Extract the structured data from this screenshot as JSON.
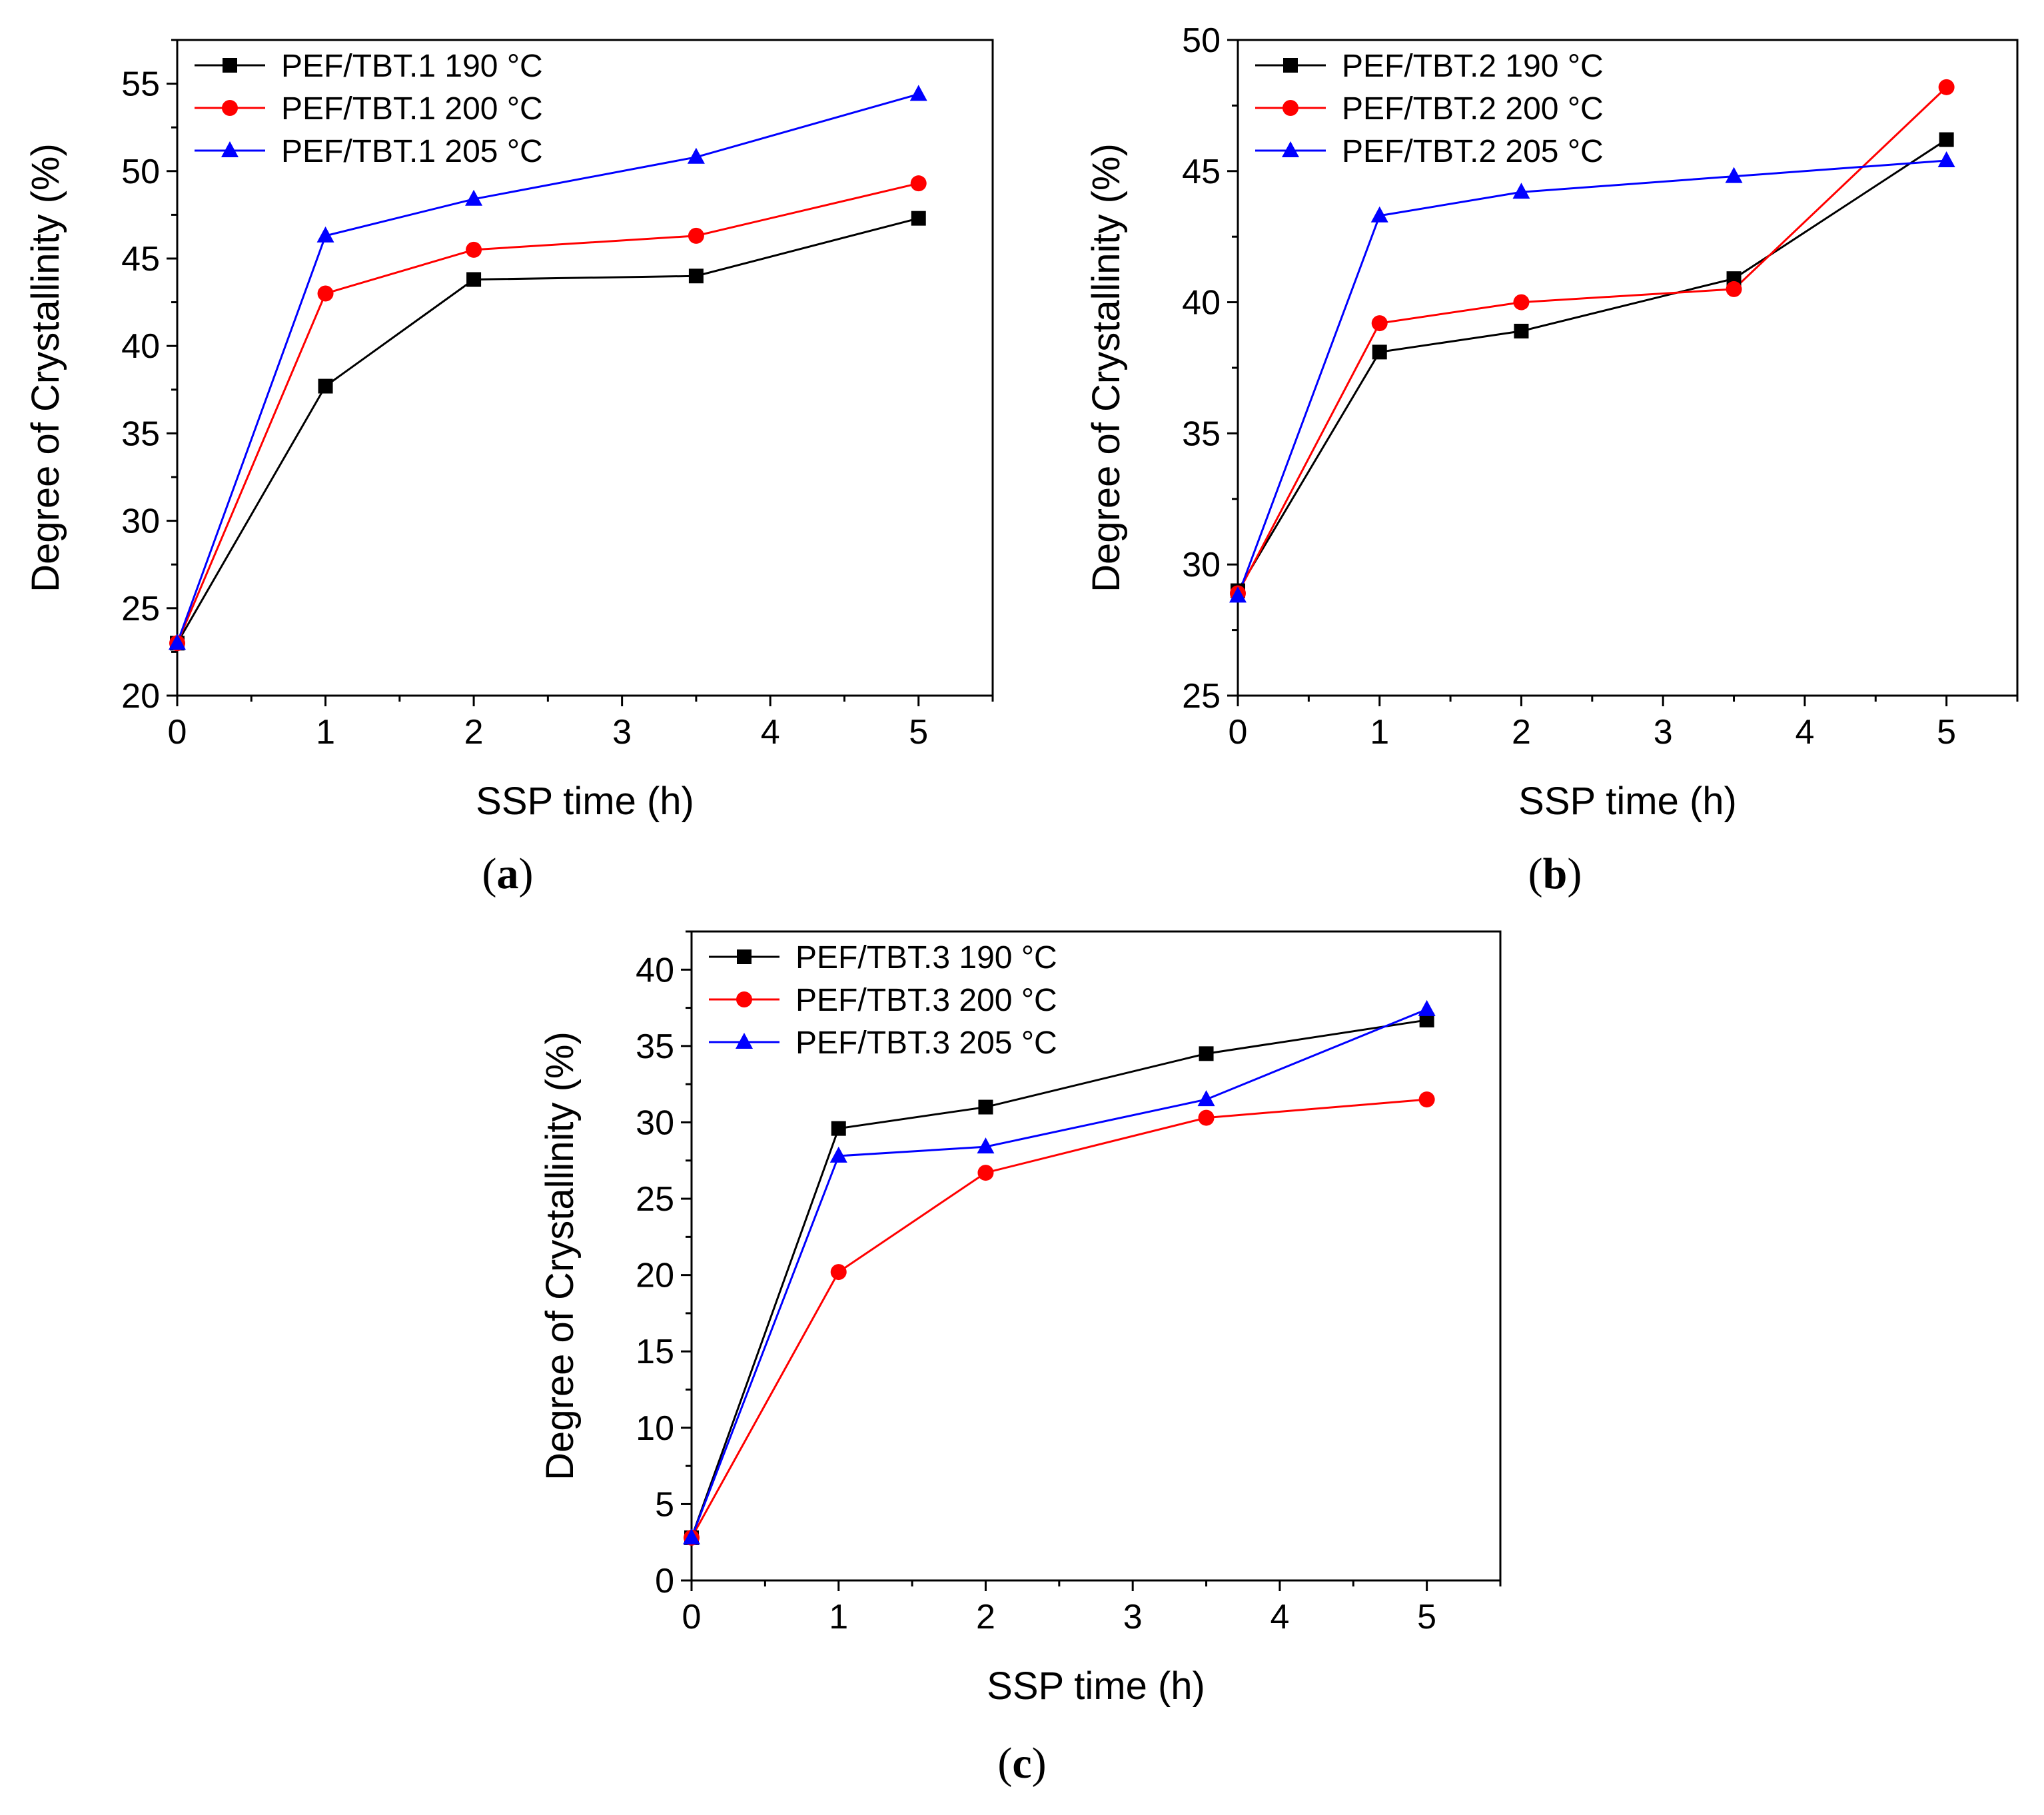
{
  "figure": {
    "panels": [
      {
        "label": "(a)",
        "letter": "a",
        "paren_open": "(",
        "paren_close": ")"
      },
      {
        "label": "(b)",
        "letter": "b",
        "paren_open": "(",
        "paren_close": ")"
      },
      {
        "label": "(c)",
        "letter": "c",
        "paren_open": "(",
        "paren_close": ")"
      }
    ]
  },
  "chart_data": [
    {
      "type": "line",
      "panel": "a",
      "xlabel": "SSP time (h)",
      "ylabel": "Degree of Crystallinity (%)",
      "xlim": [
        0,
        5.5
      ],
      "ylim": [
        20,
        57.5
      ],
      "xticks": [
        0,
        1,
        2,
        3,
        4,
        5
      ],
      "yticks": [
        20,
        25,
        30,
        35,
        40,
        45,
        50,
        55
      ],
      "legend_position": "top-left",
      "x": [
        0,
        1,
        2,
        3.5,
        5
      ],
      "series": [
        {
          "name": "PEF/TBT.1 190 °C",
          "color": "#000000",
          "marker": "square",
          "values": [
            23.0,
            37.7,
            43.8,
            44.0,
            47.3
          ]
        },
        {
          "name": "PEF/TBT.1 200 °C",
          "color": "#ff0000",
          "marker": "circle",
          "values": [
            23.0,
            43.0,
            45.5,
            46.3,
            49.3
          ]
        },
        {
          "name": "PEF/TBT.1 205 °C",
          "color": "#0000ff",
          "marker": "triangle",
          "values": [
            23.0,
            46.3,
            48.4,
            50.8,
            54.4
          ]
        }
      ]
    },
    {
      "type": "line",
      "panel": "b",
      "xlabel": "SSP time (h)",
      "ylabel": "Degree of Crystallinity (%)",
      "xlim": [
        0,
        5.5
      ],
      "ylim": [
        25,
        50
      ],
      "xticks": [
        0,
        1,
        2,
        3,
        4,
        5
      ],
      "yticks": [
        25,
        30,
        35,
        40,
        45,
        50
      ],
      "legend_position": "top-left",
      "x": [
        0,
        1,
        2,
        3.5,
        5
      ],
      "series": [
        {
          "name": "PEF/TBT.2 190 °C",
          "color": "#000000",
          "marker": "square",
          "values": [
            29.0,
            38.1,
            38.9,
            40.9,
            46.2
          ]
        },
        {
          "name": "PEF/TBT.2 200 °C",
          "color": "#ff0000",
          "marker": "circle",
          "values": [
            28.9,
            39.2,
            40.0,
            40.5,
            48.2
          ]
        },
        {
          "name": "PEF/TBT.2 205 °C",
          "color": "#0000ff",
          "marker": "triangle",
          "values": [
            28.8,
            43.3,
            44.2,
            44.8,
            45.4
          ]
        }
      ]
    },
    {
      "type": "line",
      "panel": "c",
      "xlabel": "SSP time (h)",
      "ylabel": "Degree of Crystallinity (%)",
      "xlim": [
        0,
        5.5
      ],
      "ylim": [
        0,
        42.5
      ],
      "xticks": [
        0,
        1,
        2,
        3,
        4,
        5
      ],
      "yticks": [
        0,
        5,
        10,
        15,
        20,
        25,
        30,
        35,
        40
      ],
      "legend_position": "top-left",
      "x": [
        0,
        1,
        2,
        3.5,
        5
      ],
      "series": [
        {
          "name": "PEF/TBT.3 190 °C",
          "color": "#000000",
          "marker": "square",
          "values": [
            2.8,
            29.6,
            31.0,
            34.5,
            36.7
          ]
        },
        {
          "name": "PEF/TBT.3 200 °C",
          "color": "#ff0000",
          "marker": "circle",
          "values": [
            2.8,
            20.2,
            26.7,
            30.3,
            31.5
          ]
        },
        {
          "name": "PEF/TBT.3 205 °C",
          "color": "#0000ff",
          "marker": "triangle",
          "values": [
            2.8,
            27.8,
            28.4,
            31.5,
            37.4
          ]
        }
      ]
    }
  ]
}
